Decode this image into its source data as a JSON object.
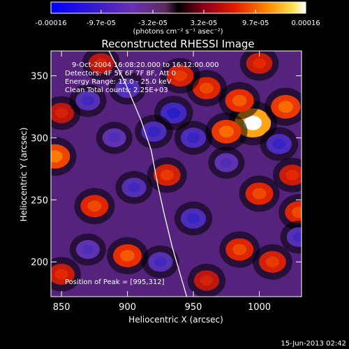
{
  "chart_data": {
    "type": "heatmap",
    "title": "Reconstructed RHESSI Image",
    "xlabel": "Heliocentric X (arcsec)",
    "ylabel": "Heliocentric Y (arcsec)",
    "xlim": [
      842,
      1032
    ],
    "ylim": [
      172,
      370
    ],
    "x_ticks": [
      850,
      900,
      950,
      1000
    ],
    "y_ticks": [
      200,
      250,
      300,
      350
    ],
    "colorbar": {
      "range": [
        -0.00016,
        0.00016
      ],
      "tick_labels": [
        "-0.00016",
        "-9.7e-05",
        "-3.2e-05",
        "3.2e-05",
        "9.7e-05",
        "0.00016"
      ],
      "unit_label": "(photons cm⁻² s⁻¹ asec⁻²)"
    },
    "annotations": [
      "9-Oct-2004 16:08:20.000 to 16:12:00.000",
      "Detectors: 4F 5F 6F 7F 8F, Att 0",
      "Energy Range: 12.0 - 25.0 keV",
      "Clean     Total counts: 2.25E+03"
    ],
    "peak": {
      "label": "Position of Peak = [995,312]",
      "x": 995,
      "y": 312
    },
    "limb_curve": [
      [
        886,
        370
      ],
      [
        898,
        345
      ],
      [
        910,
        315
      ],
      [
        918,
        290
      ],
      [
        923,
        262
      ],
      [
        928,
        238
      ],
      [
        934,
        212
      ],
      [
        940,
        190
      ],
      [
        945,
        172
      ]
    ],
    "features": [
      {
        "x": 995,
        "y": 312,
        "v": 1.0
      },
      {
        "x": 985,
        "y": 330,
        "v": 0.55
      },
      {
        "x": 975,
        "y": 305,
        "v": 0.6
      },
      {
        "x": 1020,
        "y": 325,
        "v": 0.6
      },
      {
        "x": 960,
        "y": 340,
        "v": 0.5
      },
      {
        "x": 845,
        "y": 285,
        "v": 0.65
      },
      {
        "x": 850,
        "y": 320,
        "v": 0.35
      },
      {
        "x": 875,
        "y": 245,
        "v": 0.5
      },
      {
        "x": 900,
        "y": 205,
        "v": 0.55
      },
      {
        "x": 850,
        "y": 190,
        "v": 0.4
      },
      {
        "x": 930,
        "y": 270,
        "v": 0.45
      },
      {
        "x": 940,
        "y": 350,
        "v": 0.45
      },
      {
        "x": 1000,
        "y": 255,
        "v": 0.5
      },
      {
        "x": 960,
        "y": 185,
        "v": 0.35
      },
      {
        "x": 985,
        "y": 210,
        "v": 0.5
      },
      {
        "x": 1010,
        "y": 200,
        "v": 0.45
      },
      {
        "x": 1030,
        "y": 240,
        "v": 0.5
      },
      {
        "x": 1025,
        "y": 270,
        "v": 0.4
      },
      {
        "x": 880,
        "y": 360,
        "v": 0.35
      },
      {
        "x": 1000,
        "y": 360,
        "v": 0.4
      },
      {
        "x": 950,
        "y": 300,
        "v": -0.35
      },
      {
        "x": 935,
        "y": 320,
        "v": -0.4
      },
      {
        "x": 920,
        "y": 305,
        "v": -0.35
      },
      {
        "x": 890,
        "y": 300,
        "v": -0.25
      },
      {
        "x": 870,
        "y": 330,
        "v": -0.3
      },
      {
        "x": 905,
        "y": 260,
        "v": -0.3
      },
      {
        "x": 950,
        "y": 235,
        "v": -0.35
      },
      {
        "x": 975,
        "y": 280,
        "v": -0.25
      },
      {
        "x": 925,
        "y": 200,
        "v": -0.3
      },
      {
        "x": 870,
        "y": 210,
        "v": -0.25
      },
      {
        "x": 1015,
        "y": 295,
        "v": -0.35
      },
      {
        "x": 1030,
        "y": 220,
        "v": -0.3
      },
      {
        "x": 900,
        "y": 340,
        "v": -0.3
      }
    ]
  },
  "footer": {
    "date": "15-Jun-2013 02:42"
  },
  "colors": {
    "background": "#000000",
    "text": "#ffffff",
    "limb": "#ffffff"
  }
}
